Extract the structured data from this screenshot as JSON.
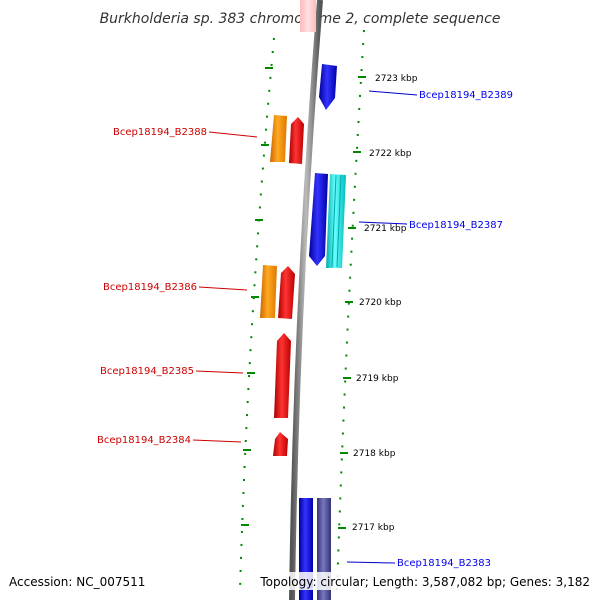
{
  "title": "Burkholderia sp. 383 chromosome 2, complete sequence",
  "accession": "Accession: NC_007511",
  "topology": "Topology: circular; Length: 3,587,082 bp; Genes: 3,182",
  "ticks": [
    "2723 kbp",
    "2722 kbp",
    "2721 kbp",
    "2720 kbp",
    "2719 kbp",
    "2718 kbp",
    "2717 kbp"
  ],
  "genes": [
    {
      "label": "Bcep18194_B2389",
      "strand": "forward",
      "color": "#0000ee"
    },
    {
      "label": "Bcep18194_B2388",
      "strand": "reverse",
      "color": "#cc0000"
    },
    {
      "label": "Bcep18194_B2387",
      "strand": "forward",
      "color": "#0000ee"
    },
    {
      "label": "Bcep18194_B2386",
      "strand": "reverse",
      "color": "#cc0000"
    },
    {
      "label": "Bcep18194_B2385",
      "strand": "reverse",
      "color": "#cc0000"
    },
    {
      "label": "Bcep18194_B2384",
      "strand": "reverse",
      "color": "#cc0000"
    },
    {
      "label": "Bcep18194_B2383",
      "strand": "forward",
      "color": "#0000ee"
    }
  ],
  "colors": {
    "forward_gene": "#0000ff",
    "reverse_gene": "#ff0000",
    "operon_orange": "#ff9900",
    "operon_cyan": "#00e5ee",
    "operon_purple": "#555599",
    "backbone": "#808080",
    "dotted_track": "#008800"
  }
}
